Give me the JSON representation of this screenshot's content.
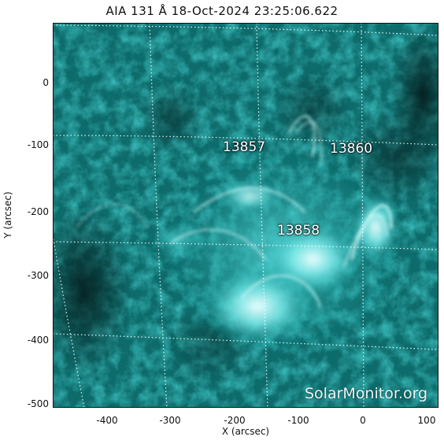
{
  "title": "AIA 131 Å 18-Oct-2024 23:25:06.622",
  "xlabel": "X (arcsec)",
  "ylabel": "Y (arcsec)",
  "xticks": [
    "-400",
    "-300",
    "-200",
    "-100",
    "0",
    "100"
  ],
  "yticks": [
    "0",
    "-100",
    "-200",
    "-300",
    "-400",
    "-500"
  ],
  "regions": [
    "13857",
    "13860",
    "13858"
  ],
  "watermark": "SolarMonitor.org",
  "colors": {
    "plasma": "#1fb5b5",
    "dark": "#052727",
    "bright": "#eaffff"
  }
}
